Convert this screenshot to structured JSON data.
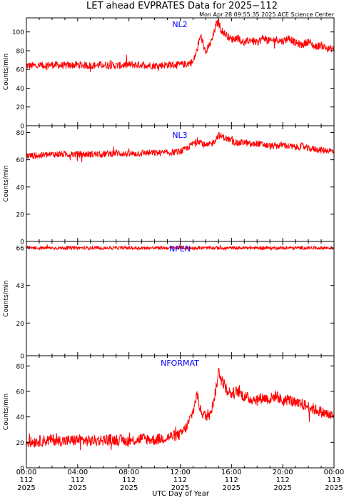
{
  "title": "LET ahead EVPRATES Data for 2025−112",
  "timestamp": "Mon Apr 28 09:55:35 2025 ACE Science Center",
  "xlabel": "UTC Day of Year",
  "colors": {
    "trace": "#ff0000",
    "panel_label": "#0000ff",
    "axis": "#000000",
    "background": "#ffffff"
  },
  "x_ticks": [
    {
      "time": "00:00",
      "doy": "112",
      "year": "2025"
    },
    {
      "time": "04:00",
      "doy": "112",
      "year": "2025"
    },
    {
      "time": "08:00",
      "doy": "112",
      "year": "2025"
    },
    {
      "time": "12:00",
      "doy": "112",
      "year": "2025"
    },
    {
      "time": "16:00",
      "doy": "112",
      "year": "2025"
    },
    {
      "time": "20:00",
      "doy": "112",
      "year": "2025"
    },
    {
      "time": "00:00",
      "doy": "113",
      "year": "2025"
    }
  ],
  "chart_data": [
    {
      "type": "line",
      "name": "NL2",
      "ylabel": "Counts/min",
      "xlim_hours": [
        0,
        24
      ],
      "ylim": [
        0,
        115
      ],
      "yticks": [
        0,
        20,
        40,
        60,
        80,
        100
      ],
      "x_hours": [
        0,
        1,
        2,
        3,
        4,
        5,
        6,
        7,
        8,
        9,
        10,
        11,
        12,
        12.5,
        13,
        13.3,
        13.6,
        14,
        14.5,
        14.8,
        15,
        15.2,
        15.5,
        16,
        16.5,
        17,
        17.5,
        18,
        18.5,
        19,
        19.5,
        20,
        20.5,
        21,
        21.5,
        22,
        22.5,
        23,
        23.5,
        24
      ],
      "values": [
        64,
        64,
        65,
        64,
        65,
        64,
        65,
        64,
        65,
        65,
        64,
        65,
        65,
        66,
        68,
        80,
        96,
        78,
        92,
        108,
        110,
        102,
        98,
        92,
        94,
        88,
        92,
        88,
        94,
        90,
        92,
        90,
        94,
        88,
        86,
        90,
        84,
        86,
        82,
        82
      ],
      "noise": 4
    },
    {
      "type": "line",
      "name": "NL3",
      "ylabel": "Counts/min",
      "xlim_hours": [
        0,
        24
      ],
      "ylim": [
        0,
        85
      ],
      "yticks": [
        0,
        20,
        40,
        60,
        80
      ],
      "x_hours": [
        0,
        1,
        2,
        3,
        4,
        5,
        6,
        7,
        8,
        9,
        10,
        11,
        12,
        12.5,
        13,
        13.5,
        14,
        14.5,
        15,
        15.5,
        16,
        16.5,
        17,
        17.5,
        18,
        18.5,
        19,
        19.5,
        20,
        20.5,
        21,
        21.5,
        22,
        22.5,
        23,
        23.5,
        24
      ],
      "values": [
        63,
        63,
        64,
        64,
        64,
        64,
        64,
        65,
        64,
        65,
        65,
        65,
        66,
        68,
        72,
        74,
        70,
        72,
        78,
        76,
        74,
        72,
        73,
        71,
        72,
        71,
        70,
        70,
        71,
        70,
        69,
        70,
        68,
        68,
        67,
        67,
        66
      ],
      "noise": 2.5
    },
    {
      "type": "line",
      "name": "NPEN",
      "ylabel": "Counts/min",
      "xlim_hours": [
        0,
        24
      ],
      "ylim": [
        0,
        70
      ],
      "yticks": [
        0,
        20,
        43,
        66
      ],
      "x_hours": [
        0,
        4,
        8,
        12,
        16,
        20,
        24
      ],
      "values": [
        66,
        66,
        66,
        66,
        66,
        66,
        66
      ],
      "noise": 1
    },
    {
      "type": "line",
      "name": "NFORMAT",
      "ylabel": "Counts/min",
      "xlim_hours": [
        0,
        24
      ],
      "ylim": [
        0,
        88
      ],
      "yticks": [
        0,
        20,
        40,
        60,
        80
      ],
      "x_hours": [
        0,
        1,
        2,
        3,
        4,
        5,
        6,
        7,
        8,
        9,
        10,
        11,
        12,
        12.5,
        13,
        13.3,
        13.6,
        14,
        14.5,
        14.8,
        15,
        15.3,
        15.6,
        16,
        16.5,
        17,
        17.5,
        18,
        18.5,
        19,
        19.5,
        20,
        20.5,
        21,
        21.5,
        22,
        22.5,
        23,
        23.5,
        24
      ],
      "values": [
        20,
        21,
        22,
        21,
        22,
        21,
        22,
        22,
        21,
        23,
        22,
        24,
        26,
        32,
        44,
        58,
        45,
        40,
        48,
        62,
        76,
        68,
        62,
        58,
        60,
        56,
        54,
        54,
        55,
        54,
        57,
        52,
        54,
        50,
        50,
        48,
        46,
        44,
        42,
        40
      ],
      "noise": 4.5
    }
  ]
}
